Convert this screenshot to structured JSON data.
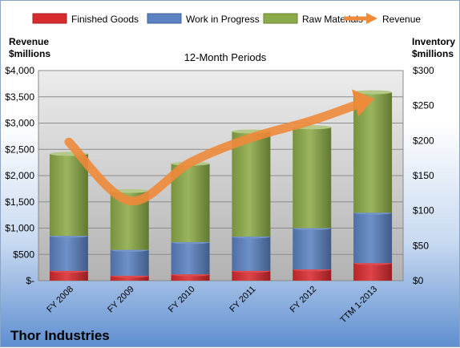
{
  "chart_data": {
    "type": "bar",
    "title": "12-Month Periods",
    "company": "Thor Industries",
    "categories": [
      "FY 2008",
      "FY 2009",
      "FY 2010",
      "FY 2011",
      "FY 2012",
      "TTM 1-2013"
    ],
    "y_left": {
      "label_line1": "Revenue",
      "label_line2": "$millions",
      "range": [
        0,
        4000
      ],
      "ticks": [
        0,
        500,
        1000,
        1500,
        2000,
        2500,
        3000,
        3500,
        4000
      ],
      "tick_labels": [
        "$-",
        "$500",
        "$1,000",
        "$1,500",
        "$2,000",
        "$2,500",
        "$3,000",
        "$3,500",
        "$4,000"
      ]
    },
    "y_right": {
      "label_line1": "Inventory",
      "label_line2": "$millions",
      "range": [
        0,
        300
      ],
      "ticks": [
        0,
        50,
        100,
        150,
        200,
        250,
        300
      ],
      "tick_labels": [
        "$0",
        "$50",
        "$100",
        "$150",
        "$200",
        "$250",
        "$300"
      ]
    },
    "stacked_series": [
      {
        "name": "Finished Goods",
        "axis": "right",
        "color": "#d92b2f",
        "values": [
          14,
          7,
          9,
          14,
          16,
          25
        ]
      },
      {
        "name": "Work in Progress",
        "axis": "right",
        "color": "#5b82c2",
        "values": [
          50,
          37,
          46,
          49,
          59,
          72
        ]
      },
      {
        "name": "Raw Materials",
        "axis": "right",
        "color": "#8cab48",
        "values": [
          117,
          84,
          112,
          150,
          144,
          172
        ]
      }
    ],
    "line_series": {
      "name": "Revenue",
      "axis": "left",
      "color": "#ee8a3a",
      "values": [
        2640,
        1520,
        2250,
        2720,
        3050,
        3460
      ]
    },
    "legend_position": "top",
    "grid": true
  }
}
